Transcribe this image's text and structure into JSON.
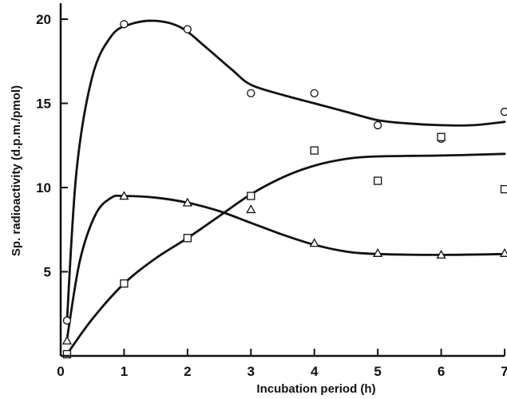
{
  "chart_data": {
    "type": "scatter",
    "title": "",
    "xlabel": "Incubation period (h)",
    "ylabel": "Sp. radioactivity (d.p.m./pmol)",
    "xlim": [
      0,
      7
    ],
    "ylim": [
      0,
      20
    ],
    "x_ticks": [
      "0",
      "1",
      "2",
      "3",
      "4",
      "5",
      "6",
      "7"
    ],
    "y_ticks": [
      "5",
      "10",
      "15",
      "20"
    ],
    "grid": false,
    "legend": "none",
    "series": [
      {
        "marker": "circle",
        "points": [
          [
            0.1,
            2.1
          ],
          [
            1,
            19.7
          ],
          [
            2,
            19.4
          ],
          [
            3,
            15.6
          ],
          [
            4,
            15.6
          ],
          [
            5,
            13.7
          ],
          [
            6,
            12.9
          ],
          [
            7,
            14.5
          ]
        ],
        "curve": [
          [
            0.1,
            2.1
          ],
          [
            0.25,
            11.0
          ],
          [
            0.5,
            16.6
          ],
          [
            0.8,
            19.0
          ],
          [
            1.1,
            19.7
          ],
          [
            1.5,
            19.9
          ],
          [
            1.9,
            19.5
          ],
          [
            2.3,
            18.3
          ],
          [
            2.7,
            17.0
          ],
          [
            3.0,
            16.1
          ],
          [
            3.5,
            15.5
          ],
          [
            4.0,
            15.0
          ],
          [
            4.5,
            14.5
          ],
          [
            5.0,
            14.0
          ],
          [
            5.5,
            13.8
          ],
          [
            6.0,
            13.7
          ],
          [
            6.5,
            13.7
          ],
          [
            7.0,
            13.9
          ]
        ]
      },
      {
        "marker": "triangle",
        "points": [
          [
            0.1,
            0.9
          ],
          [
            1,
            9.5
          ],
          [
            2,
            9.1
          ],
          [
            3,
            8.7
          ],
          [
            4,
            6.7
          ],
          [
            5,
            6.1
          ],
          [
            6,
            6.0
          ],
          [
            7,
            6.1
          ]
        ],
        "curve": [
          [
            0.1,
            1.0
          ],
          [
            0.3,
            5.6
          ],
          [
            0.55,
            8.4
          ],
          [
            0.8,
            9.4
          ],
          [
            1.0,
            9.5
          ],
          [
            1.5,
            9.4
          ],
          [
            2.0,
            9.1
          ],
          [
            2.5,
            8.6
          ],
          [
            3.0,
            7.9
          ],
          [
            3.5,
            7.2
          ],
          [
            4.0,
            6.6
          ],
          [
            4.5,
            6.2
          ],
          [
            5.0,
            6.05
          ],
          [
            6.0,
            6.0
          ],
          [
            7.0,
            6.05
          ]
        ]
      },
      {
        "marker": "square",
        "points": [
          [
            0.1,
            0.1
          ],
          [
            1,
            4.3
          ],
          [
            2,
            7.0
          ],
          [
            3,
            9.5
          ],
          [
            4,
            12.2
          ],
          [
            5,
            10.4
          ],
          [
            6,
            13.0
          ],
          [
            7,
            9.9
          ]
        ],
        "curve": [
          [
            0.1,
            0.1
          ],
          [
            0.5,
            2.2
          ],
          [
            1.0,
            4.3
          ],
          [
            1.5,
            5.8
          ],
          [
            2.0,
            7.0
          ],
          [
            2.5,
            8.3
          ],
          [
            3.0,
            9.6
          ],
          [
            3.5,
            10.6
          ],
          [
            4.0,
            11.3
          ],
          [
            4.5,
            11.7
          ],
          [
            5.0,
            11.85
          ],
          [
            6.0,
            11.9
          ],
          [
            7.0,
            12.0
          ]
        ]
      }
    ]
  }
}
